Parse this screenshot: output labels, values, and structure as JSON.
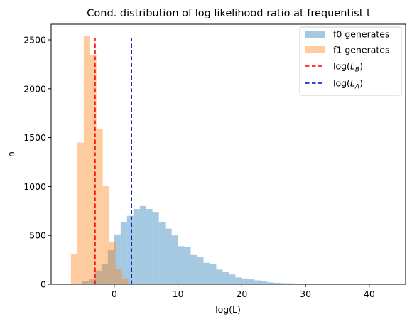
{
  "chart_data": {
    "type": "histogram",
    "title": "Cond. distribution of log likelihood ratio at frequentist  t",
    "xlabel": "log(L)",
    "ylabel": "n",
    "xlim": [
      -9.9,
      45.7
    ],
    "ylim": [
      0,
      2660
    ],
    "x_ticks": [
      0,
      10,
      20,
      30,
      40
    ],
    "y_ticks": [
      0,
      500,
      1000,
      1500,
      2000,
      2500
    ],
    "legend_position": "upper right",
    "series": [
      {
        "name": "f0 generates",
        "color": "#1f77b4",
        "alpha": 0.4,
        "bin_edges": [
          -5.0,
          -4.0,
          -3.0,
          -2.0,
          -1.0,
          0.0,
          1.0,
          2.0,
          3.0,
          4.0,
          5.0,
          6.0,
          7.0,
          8.0,
          9.0,
          10.0,
          11.0,
          12.0,
          13.0,
          14.0,
          15.0,
          16.0,
          17.0,
          18.0,
          19.0,
          20.0,
          21.0,
          22.0,
          23.0,
          24.0,
          25.0,
          26.0,
          27.0,
          28.0,
          29.0,
          30.0,
          31.0,
          32.0,
          33.0,
          34.0,
          35.0,
          36.0,
          37.0,
          38.0,
          39.0,
          40.0,
          41.0,
          42.0,
          43.0,
          44.0
        ],
        "counts": [
          30,
          50,
          140,
          210,
          350,
          510,
          640,
          700,
          770,
          800,
          770,
          740,
          640,
          570,
          500,
          390,
          380,
          300,
          280,
          220,
          210,
          150,
          130,
          100,
          70,
          60,
          50,
          40,
          35,
          20,
          15,
          12,
          10,
          8,
          6,
          5,
          4,
          3,
          3,
          2,
          2,
          2,
          1,
          1,
          1,
          1,
          0,
          0,
          1
        ]
      },
      {
        "name": "f1 generates",
        "color": "#ff7f0e",
        "alpha": 0.4,
        "bin_edges": [
          -6.8,
          -5.8,
          -4.8,
          -3.8,
          -2.8,
          -1.8,
          -0.8,
          0.2,
          1.2,
          2.2
        ],
        "counts": [
          310,
          1450,
          2540,
          2340,
          1590,
          1010,
          430,
          160,
          60
        ]
      }
    ],
    "vlines": [
      {
        "name": "log(L_B)",
        "label_main": "log(",
        "label_sub": "B",
        "label_close": ")",
        "x": -3.0,
        "ymax": 2520,
        "color": "#ff0000"
      },
      {
        "name": "log(L_A)",
        "label_main": "log(",
        "label_sub": "A",
        "label_close": ")",
        "x": 2.7,
        "ymax": 2520,
        "color": "#0000cc"
      }
    ]
  }
}
